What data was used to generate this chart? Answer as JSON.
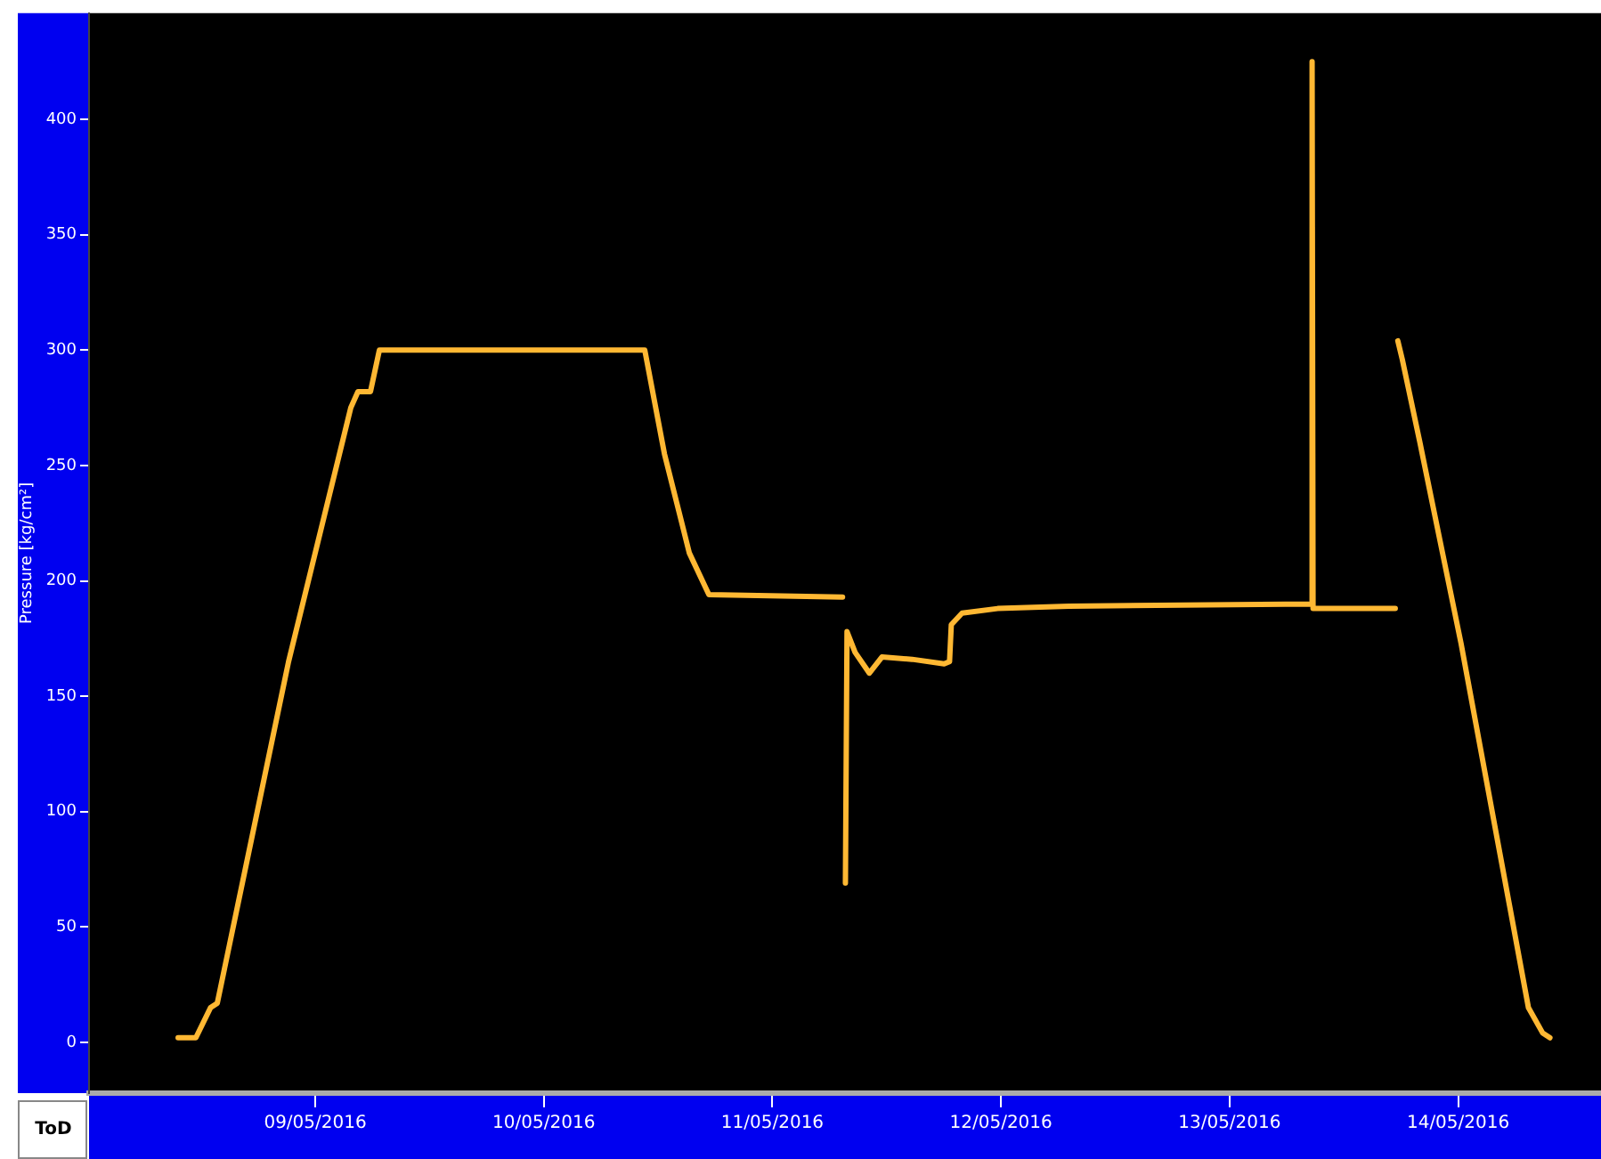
{
  "chart_data": {
    "type": "line",
    "xlabel": "ToD",
    "ylabel": "Pressure [kg/cm²]",
    "xlim": [
      "2016-05-08T00:15",
      "2016-05-14T15:00"
    ],
    "xticks": [
      {
        "value": "2016-05-09",
        "label": "09/05/2016"
      },
      {
        "value": "2016-05-10",
        "label": "10/05/2016"
      },
      {
        "value": "2016-05-11",
        "label": "11/05/2016"
      },
      {
        "value": "2016-05-12",
        "label": "12/05/2016"
      },
      {
        "value": "2016-05-13",
        "label": "13/05/2016"
      },
      {
        "value": "2016-05-14",
        "label": "14/05/2016"
      }
    ],
    "ylim": [
      -22,
      446
    ],
    "yticks": [
      0,
      50,
      100,
      150,
      200,
      250,
      300,
      350,
      400
    ],
    "grid": false,
    "legend": false,
    "series": [
      {
        "color": "#ffb833",
        "x": [
          "2016-05-08T09:36",
          "2016-05-08T11:28",
          "2016-05-08T13:00",
          "2016-05-08T13:43",
          "2016-05-08T21:12",
          "2016-05-09T03:44",
          "2016-05-09T04:29",
          "2016-05-09T05:48",
          "2016-05-09T06:44",
          "2016-05-10T10:36",
          "2016-05-10T12:40",
          "2016-05-10T15:17",
          "2016-05-10T17:20",
          "2016-05-11T07:22",
          "2016-05-11T07:30",
          "2016-05-11T07:40",
          "2016-05-11T07:50",
          "2016-05-11T08:41",
          "2016-05-11T10:11",
          "2016-05-11T11:30",
          "2016-05-11T14:40",
          "2016-05-11T18:02",
          "2016-05-11T18:36",
          "2016-05-11T18:47",
          "2016-05-11T19:55",
          "2016-05-11T23:39",
          "2016-05-12T07:08",
          "2016-05-13T08:34",
          "2016-05-13T08:40",
          "2016-05-13T08:46",
          "2016-05-13T17:24",
          "2016-05-13T17:30",
          "2016-05-13T17:40",
          "2016-05-13T18:08",
          "2016-05-13T19:59",
          "2016-05-14T00:18",
          "2016-05-14T07:23",
          "2016-05-14T08:53",
          "2016-05-14T09:38"
        ],
        "values": [
          2,
          2,
          15,
          17,
          165,
          275,
          282,
          282,
          300,
          300,
          255,
          212,
          194,
          193,
          null,
          69,
          178,
          169,
          160,
          167,
          166,
          164,
          165,
          181,
          186,
          188,
          189,
          190,
          425,
          188,
          188,
          null,
          304,
          296,
          260,
          173,
          15,
          4,
          2
        ]
      }
    ]
  }
}
